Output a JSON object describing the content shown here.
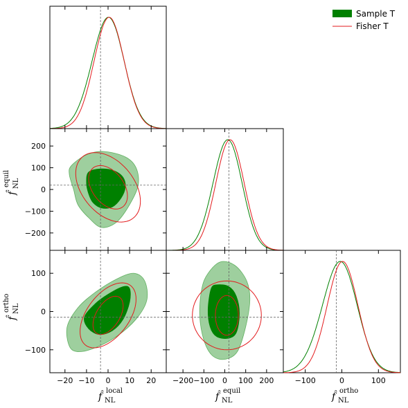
{
  "legend": {
    "sample_label": "Sample T",
    "fisher_label": "Fisher T",
    "sample_color": "#008000",
    "fisher_color": "#e31a1c"
  },
  "axes": {
    "local": {
      "label": "f̂",
      "sub": "NL",
      "sup": "local",
      "range": [
        -27,
        27
      ],
      "ticks": [
        -20,
        -10,
        0,
        10,
        20
      ],
      "ref": -3.5
    },
    "equil": {
      "label": "f̂",
      "sub": "NL",
      "sup": "equil",
      "range": [
        -280,
        280
      ],
      "ticks": [
        -200,
        -100,
        0,
        100,
        200
      ],
      "ref": 20
    },
    "ortho": {
      "label": "f̂",
      "sub": "NL",
      "sup": "ortho",
      "range": [
        -160,
        160
      ],
      "ticks": [
        -100,
        0,
        100
      ],
      "ref": -15
    }
  },
  "chart_data": [
    {
      "type": "line",
      "panel": "local-1d",
      "series": [
        {
          "name": "Sample T",
          "mean": -0.5,
          "sigma": 7.5,
          "skew": 0.15
        },
        {
          "name": "Fisher T",
          "mean": 0.5,
          "sigma": 7.0,
          "skew": 0.0
        }
      ]
    },
    {
      "type": "line",
      "panel": "equil-1d",
      "series": [
        {
          "name": "Sample T",
          "mean": 10,
          "sigma": 70,
          "skew": 0.1
        },
        {
          "name": "Fisher T",
          "mean": 25,
          "sigma": 68,
          "skew": 0.0
        }
      ]
    },
    {
      "type": "line",
      "panel": "ortho-1d",
      "series": [
        {
          "name": "Sample T",
          "mean": -10,
          "sigma": 48,
          "skew": 0.2
        },
        {
          "name": "Fisher T",
          "mean": 2,
          "sigma": 42,
          "skew": 0.0
        }
      ]
    },
    {
      "type": "scatter",
      "panel": "local-vs-equil",
      "sample_inner": [
        [
          -9,
          80
        ],
        [
          -3,
          95
        ],
        [
          3,
          85
        ],
        [
          7,
          55
        ],
        [
          8,
          10
        ],
        [
          6,
          -40
        ],
        [
          2,
          -80
        ],
        [
          -3,
          -85
        ],
        [
          -7,
          -60
        ],
        [
          -9,
          -20
        ],
        [
          -10,
          30
        ]
      ],
      "sample_outer": [
        [
          -17,
          110
        ],
        [
          -10,
          160
        ],
        [
          -2,
          175
        ],
        [
          8,
          150
        ],
        [
          13,
          100
        ],
        [
          14,
          20
        ],
        [
          10,
          -70
        ],
        [
          4,
          -150
        ],
        [
          -3,
          -175
        ],
        [
          -9,
          -130
        ],
        [
          -14,
          -70
        ],
        [
          -16,
          0
        ],
        [
          -18,
          70
        ]
      ],
      "fisher_inner": {
        "cx": 0,
        "cy": 10,
        "sx": 9,
        "sy": 100,
        "rho": -0.4
      },
      "fisher_outer": {
        "cx": 0,
        "cy": 10,
        "sx": 15,
        "sy": 160,
        "rho": -0.4
      }
    },
    {
      "type": "scatter",
      "panel": "local-vs-ortho",
      "sample_inner": [
        [
          -9,
          -45
        ],
        [
          -11,
          -15
        ],
        [
          -6,
          20
        ],
        [
          0,
          45
        ],
        [
          7,
          65
        ],
        [
          10,
          60
        ],
        [
          10,
          25
        ],
        [
          7,
          -20
        ],
        [
          2,
          -50
        ],
        [
          -4,
          -60
        ]
      ],
      "sample_outer": [
        [
          -18,
          -90
        ],
        [
          -19,
          -40
        ],
        [
          -14,
          10
        ],
        [
          -6,
          50
        ],
        [
          4,
          85
        ],
        [
          12,
          100
        ],
        [
          17,
          80
        ],
        [
          18,
          30
        ],
        [
          13,
          -20
        ],
        [
          4,
          -65
        ],
        [
          -6,
          -95
        ],
        [
          -14,
          -105
        ]
      ],
      "fisher_inner": {
        "cx": 0,
        "cy": -10,
        "sx": 7,
        "sy": 50,
        "rho": 0.5
      },
      "fisher_outer": {
        "cx": 0,
        "cy": -10,
        "sx": 13,
        "sy": 85,
        "rho": 0.5
      }
    },
    {
      "type": "scatter",
      "panel": "equil-vs-ortho",
      "sample_inner": [
        [
          -65,
          60
        ],
        [
          -35,
          70
        ],
        [
          20,
          65
        ],
        [
          55,
          40
        ],
        [
          70,
          -5
        ],
        [
          55,
          -55
        ],
        [
          15,
          -70
        ],
        [
          -40,
          -65
        ],
        [
          -70,
          -40
        ],
        [
          -80,
          5
        ]
      ],
      "sample_outer": [
        [
          -80,
          100
        ],
        [
          -20,
          130
        ],
        [
          50,
          120
        ],
        [
          105,
          80
        ],
        [
          120,
          30
        ],
        [
          100,
          -40
        ],
        [
          60,
          -105
        ],
        [
          0,
          -125
        ],
        [
          -60,
          -115
        ],
        [
          -100,
          -75
        ],
        [
          -120,
          -10
        ],
        [
          -110,
          60
        ]
      ],
      "fisher_inner": {
        "cx": 10,
        "cy": -10,
        "sx": 55,
        "sy": 52,
        "rho": 0.0
      },
      "fisher_outer": {
        "cx": 10,
        "cy": -10,
        "sx": 165,
        "sy": 90,
        "rho": 0.0
      }
    }
  ]
}
